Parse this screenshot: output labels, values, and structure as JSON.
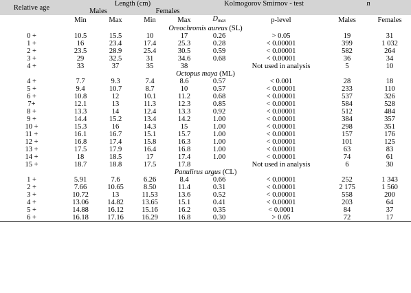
{
  "headers": {
    "relative_age": "Relative age",
    "length": "Length (cm)",
    "males": "Males",
    "females": "Females",
    "ks_test": "Kolmogorov Smirnov - test",
    "n": "n",
    "min": "Min",
    "max": "Max",
    "dmax_main": "D",
    "dmax_sub": "max",
    "p_level": "p-level",
    "n_males": "Males",
    "n_females": "Females"
  },
  "sections": [
    {
      "species": "Oreochromis aureus",
      "unit": "(SL)",
      "rows": [
        [
          "0 +",
          "10.5",
          "15.5",
          "10",
          "17",
          "0.26",
          "> 0.05",
          "19",
          "31"
        ],
        [
          "1 +",
          "16",
          "23.4",
          "17.4",
          "25.3",
          "0.28",
          "< 0.00001",
          "399",
          "1 032"
        ],
        [
          "2 +",
          "23.5",
          "28.9",
          "25.4",
          "30.5",
          "0.59",
          "< 0.00001",
          "582",
          "264"
        ],
        [
          "3 +",
          "29",
          "32.5",
          "31",
          "34.6",
          "0.68",
          "< 0.00001",
          "36",
          "34"
        ],
        [
          "4 +",
          "33",
          "37",
          "35",
          "38",
          "",
          "Not used in analysis",
          "5",
          "10"
        ]
      ]
    },
    {
      "species": "Octopus maya",
      "unit": "(ML)",
      "rows": [
        [
          "4 +",
          "7.7",
          "9.3",
          "7.4",
          "8.6",
          "0.57",
          "< 0.001",
          "28",
          "18"
        ],
        [
          "5 +",
          "9.4",
          "10.7",
          "8.7",
          "10",
          "0.57",
          "< 0.00001",
          "233",
          "110"
        ],
        [
          "6 +",
          "10.8",
          "12",
          "10.1",
          "11.2",
          "0.68",
          "< 0.00001",
          "537",
          "326"
        ],
        [
          "7+",
          "12.1",
          "13",
          "11.3",
          "12.3",
          "0.85",
          "< 0.00001",
          "584",
          "528"
        ],
        [
          "8 +",
          "13.3",
          "14",
          "12.4",
          "13.3",
          "0.92",
          "< 0.00001",
          "512",
          "484"
        ],
        [
          "9 +",
          "14.4",
          "15.2",
          "13.4",
          "14.2",
          "1.00",
          "< 0.00001",
          "384",
          "357"
        ],
        [
          "10 +",
          "15.3",
          "16",
          "14.3",
          "15",
          "1.00",
          "< 0.00001",
          "298",
          "351"
        ],
        [
          "11 +",
          "16.1",
          "16.7",
          "15.1",
          "15.7",
          "1.00",
          "< 0.00001",
          "157",
          "176"
        ],
        [
          "12 +",
          "16.8",
          "17.4",
          "15.8",
          "16.3",
          "1.00",
          "< 0.00001",
          "101",
          "125"
        ],
        [
          "13 +",
          "17.5",
          "17.9",
          "16.4",
          "16.8",
          "1.00",
          "< 0.00001",
          "63",
          "83"
        ],
        [
          "14 +",
          "18",
          "18.5",
          "17",
          "17.4",
          "1.00",
          "< 0.00001",
          "74",
          "61"
        ],
        [
          "15 +",
          "18.7",
          "18.8",
          "17.5",
          "17.8",
          "",
          "Not used in analysis",
          "6",
          "30"
        ]
      ]
    },
    {
      "species": "Panulirus argus",
      "unit": "(CL)",
      "rows": [
        [
          "1 +",
          "5.91",
          "7.6",
          "6.26",
          "8.4",
          "0.66",
          "< 0.00001",
          "252",
          "1 343"
        ],
        [
          "2 +",
          "7.66",
          "10.65",
          "8.50",
          "11.4",
          "0.31",
          "< 0.00001",
          "2 175",
          "1 560"
        ],
        [
          "3 +",
          "10.72",
          "13",
          "11.53",
          "13.6",
          "0.52",
          "< 0.00001",
          "558",
          "200"
        ],
        [
          "4 +",
          "13.06",
          "14.82",
          "13.65",
          "15.1",
          "0.41",
          "< 0.00001",
          "203",
          "64"
        ],
        [
          "5 +",
          "14.88",
          "16.12",
          "15.16",
          "16.2",
          "0.35",
          "< 0.0001",
          "84",
          "37"
        ],
        [
          "6 +",
          "16.18",
          "17.16",
          "16.29",
          "16.8",
          "0.30",
          "> 0.05",
          "72",
          "17"
        ]
      ]
    }
  ]
}
